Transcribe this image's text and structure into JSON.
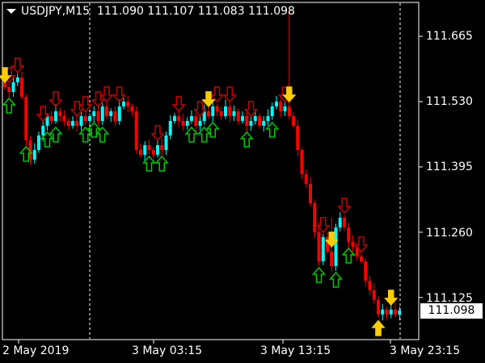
{
  "header": {
    "symbol": "USDJPY,M15",
    "open": "111.090",
    "high": "111.107",
    "low": "111.083",
    "close": "111.098"
  },
  "current_price": "111.098",
  "colors": {
    "background": "#000000",
    "bull": "#00ffff",
    "bear": "#ff0000",
    "signal_down": "#cc0000",
    "signal_up": "#00cc00",
    "signal_strong": "#ffcc00",
    "axis": "#ffffff"
  },
  "chart_data": {
    "type": "candlestick",
    "title": "USDJPY,M15",
    "ylim": [
      111.038,
      111.735
    ],
    "y_ticks": [
      "111.665",
      "111.530",
      "111.395",
      "111.260",
      "111.125"
    ],
    "x_ticks": [
      "2 May 2019",
      "3 May 03:15",
      "3 May 13:15",
      "3 May 23:15"
    ],
    "grid": false,
    "close": [
      111.56,
      111.55,
      111.57,
      111.58,
      111.54,
      111.45,
      111.41,
      111.43,
      111.46,
      111.48,
      111.5,
      111.49,
      111.51,
      111.5,
      111.49,
      111.48,
      111.49,
      111.48,
      111.5,
      111.49,
      111.5,
      111.51,
      111.49,
      111.52,
      111.5,
      111.51,
      111.49,
      111.52,
      111.53,
      111.52,
      111.51,
      111.43,
      111.42,
      111.44,
      111.43,
      111.42,
      111.44,
      111.43,
      111.46,
      111.49,
      111.5,
      111.49,
      111.48,
      111.49,
      111.5,
      111.48,
      111.49,
      111.51,
      111.5,
      111.52,
      111.51,
      111.5,
      111.52,
      111.5,
      111.51,
      111.49,
      111.5,
      111.48,
      111.49,
      111.5,
      111.48,
      111.49,
      111.5,
      111.52,
      111.53,
      111.51,
      111.52,
      111.5,
      111.48,
      111.43,
      111.38,
      111.36,
      111.32,
      111.26,
      111.2,
      111.25,
      111.22,
      111.19,
      111.27,
      111.29,
      111.27,
      111.24,
      111.23,
      111.21,
      111.2,
      111.16,
      111.14,
      111.12,
      111.09,
      111.1,
      111.09,
      111.1,
      111.09,
      111.098
    ],
    "high_exceptions": {
      "67": 111.72,
      "74": 111.28,
      "77": 111.29
    },
    "signals_down": [
      1,
      3,
      9,
      12,
      17,
      19,
      22,
      24,
      27,
      36,
      41,
      46,
      50,
      53,
      58,
      66,
      75,
      80,
      84
    ],
    "signals_down_strong": [
      0,
      48,
      67,
      77,
      91
    ],
    "signals_up": [
      1,
      5,
      10,
      12,
      19,
      21,
      23,
      34,
      37,
      44,
      47,
      49,
      57,
      63,
      74,
      78,
      81,
      88
    ],
    "signals_up_strong": [
      88
    ]
  }
}
